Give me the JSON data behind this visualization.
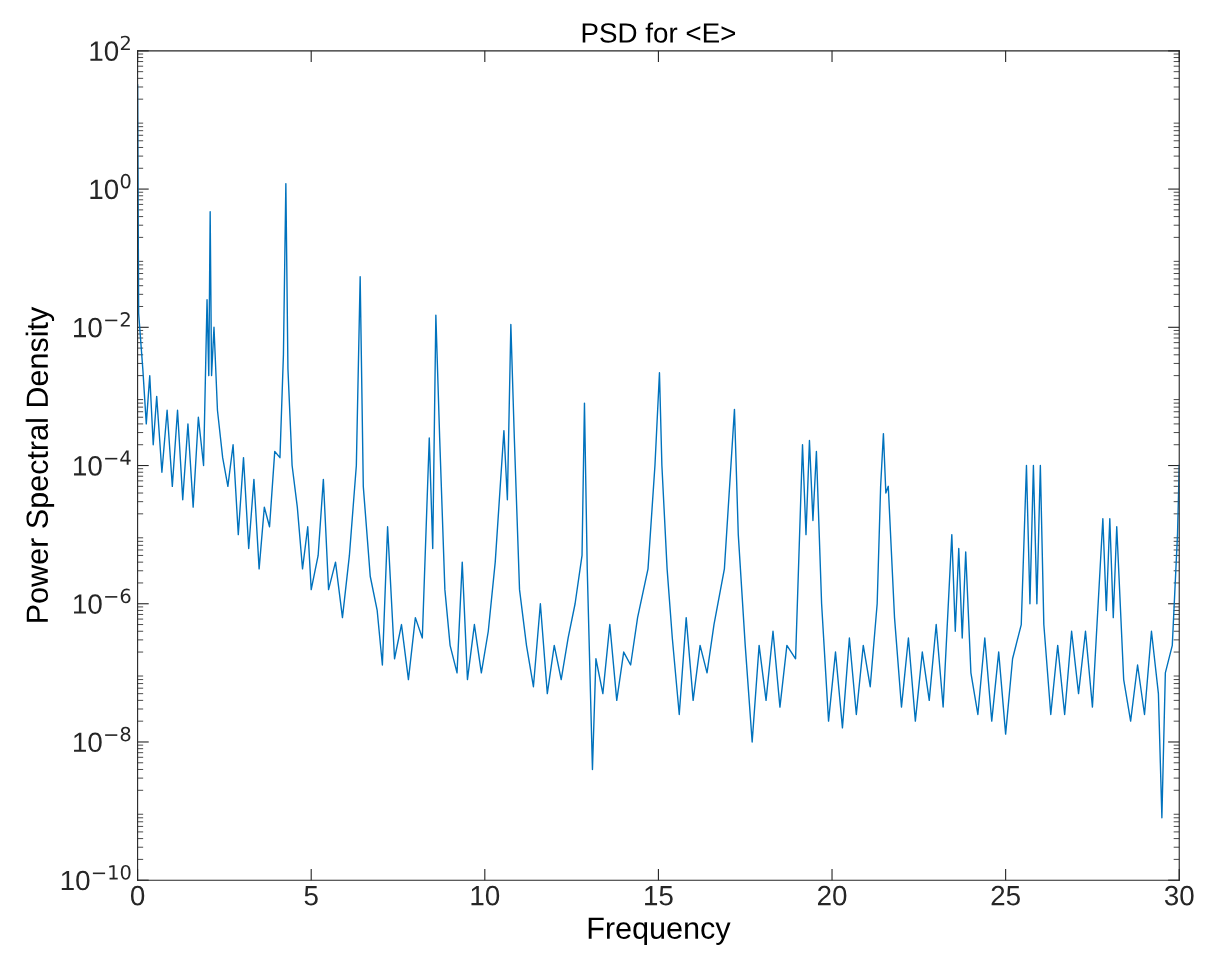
{
  "chart_data": {
    "type": "line",
    "title": "PSD for <E>",
    "xlabel": "Frequency",
    "ylabel": "Power Spectral Density",
    "log": "y",
    "grid": false,
    "marker": "none",
    "line_style": "solid",
    "xlim": [
      0,
      30
    ],
    "xticks": [
      0,
      5,
      10,
      15,
      20,
      25,
      30
    ],
    "ylim": [
      1e-10,
      100
    ],
    "yticks": [
      {
        "value": 1e-10,
        "label": "10$^{−10}$"
      },
      {
        "value": 1e-08,
        "label": "10$^{−8}$"
      },
      {
        "value": 1e-06,
        "label": "10$^{−6}$"
      },
      {
        "value": 0.0001,
        "label": "10$^{−4}$"
      },
      {
        "value": 0.01,
        "label": "10$^{−2}$"
      },
      {
        "value": 1,
        "label": "10$^{0}$"
      },
      {
        "value": 100,
        "label": "10$^{2}$"
      }
    ],
    "series": [
      {
        "color": "#0072bd",
        "x": [
          0,
          0.03,
          0.15,
          0.25,
          0.35,
          0.45,
          0.55,
          0.7,
          0.85,
          1.0,
          1.15,
          1.3,
          1.45,
          1.6,
          1.75,
          1.9,
          2.0,
          2.05,
          2.09,
          2.13,
          2.2,
          2.3,
          2.45,
          2.6,
          2.75,
          2.9,
          3.05,
          3.2,
          3.35,
          3.5,
          3.65,
          3.8,
          3.95,
          4.1,
          4.2,
          4.27,
          4.33,
          4.45,
          4.6,
          4.75,
          4.9,
          5.0,
          5.2,
          5.35,
          5.5,
          5.7,
          5.9,
          6.1,
          6.3,
          6.41,
          6.5,
          6.7,
          6.9,
          7.05,
          7.2,
          7.4,
          7.6,
          7.8,
          8.0,
          8.2,
          8.4,
          8.5,
          8.59,
          8.7,
          8.85,
          9.0,
          9.2,
          9.35,
          9.5,
          9.7,
          9.9,
          10.1,
          10.3,
          10.55,
          10.65,
          10.75,
          10.85,
          11.0,
          11.2,
          11.4,
          11.6,
          11.8,
          12.0,
          12.2,
          12.4,
          12.6,
          12.8,
          12.87,
          12.95,
          13.1,
          13.2,
          13.4,
          13.6,
          13.8,
          14.0,
          14.2,
          14.4,
          14.7,
          14.9,
          15.03,
          15.1,
          15.25,
          15.4,
          15.6,
          15.8,
          16.0,
          16.2,
          16.4,
          16.6,
          16.9,
          17.05,
          17.19,
          17.3,
          17.5,
          17.7,
          17.9,
          18.1,
          18.3,
          18.5,
          18.7,
          18.95,
          19.15,
          19.25,
          19.35,
          19.45,
          19.55,
          19.7,
          19.9,
          20.1,
          20.3,
          20.5,
          20.7,
          20.9,
          21.1,
          21.3,
          21.4,
          21.48,
          21.55,
          21.62,
          21.8,
          22.0,
          22.2,
          22.4,
          22.6,
          22.8,
          23.0,
          23.2,
          23.45,
          23.55,
          23.65,
          23.75,
          23.85,
          24.0,
          24.2,
          24.4,
          24.6,
          24.8,
          25.0,
          25.2,
          25.45,
          25.6,
          25.7,
          25.8,
          25.9,
          26.0,
          26.1,
          26.3,
          26.5,
          26.7,
          26.9,
          27.1,
          27.3,
          27.5,
          27.8,
          27.9,
          28.0,
          28.1,
          28.2,
          28.4,
          28.6,
          28.8,
          29.0,
          29.2,
          29.4,
          29.5,
          29.6,
          29.8,
          29.95,
          30.0
        ],
        "values": [
          32,
          0.016,
          0.0025,
          0.0004,
          0.002,
          0.0002,
          0.001,
          8e-05,
          0.00063,
          5e-05,
          0.00063,
          3.2e-05,
          0.0004,
          2.5e-05,
          0.0005,
          0.0001,
          0.025,
          0.002,
          0.47,
          0.002,
          0.01,
          0.00063,
          0.00013,
          5e-05,
          0.0002,
          1e-05,
          0.00013,
          6.3e-06,
          6.3e-05,
          3.2e-06,
          2.5e-05,
          1.3e-05,
          0.00016,
          0.00013,
          0.004,
          1.2,
          0.0025,
          0.0001,
          2.5e-05,
          3.2e-06,
          1.3e-05,
          1.6e-06,
          5e-06,
          6.3e-05,
          1.6e-06,
          4e-06,
          6.3e-07,
          5e-06,
          0.0001,
          0.054,
          5e-05,
          2.5e-06,
          8e-07,
          1.3e-07,
          1.3e-05,
          1.6e-07,
          5e-07,
          8e-08,
          6.3e-07,
          3.2e-07,
          0.00025,
          6.3e-06,
          0.015,
          0.00025,
          1.6e-06,
          2.5e-07,
          1e-07,
          4e-06,
          8e-08,
          5e-07,
          1e-07,
          4e-07,
          4e-06,
          0.00032,
          3.2e-05,
          0.011,
          0.00025,
          1.6e-06,
          2.5e-07,
          6.3e-08,
          1e-06,
          5e-08,
          2.5e-07,
          8e-08,
          3.2e-07,
          1e-06,
          5e-06,
          0.0008,
          3.2e-06,
          4e-09,
          1.6e-07,
          5e-08,
          5e-07,
          4e-08,
          2e-07,
          1.3e-07,
          6.3e-07,
          3.2e-06,
          0.0001,
          0.0022,
          0.0001,
          3.2e-06,
          3.2e-07,
          2.5e-08,
          6.3e-07,
          4e-08,
          2.5e-07,
          1e-07,
          5e-07,
          3.2e-06,
          5e-05,
          0.00065,
          1e-05,
          2.5e-07,
          1e-08,
          2.5e-07,
          4e-08,
          4e-07,
          3.2e-08,
          2.5e-07,
          1.6e-07,
          0.0002,
          1e-05,
          0.00023,
          1.6e-05,
          0.00016,
          1e-06,
          2e-08,
          2e-07,
          1.6e-08,
          3.2e-07,
          2.5e-08,
          2.5e-07,
          6.3e-08,
          1e-06,
          5e-05,
          0.00029,
          4e-05,
          5e-05,
          6.3e-07,
          3.2e-08,
          3.2e-07,
          2e-08,
          2e-07,
          4e-08,
          5e-07,
          3.2e-08,
          1e-05,
          4e-07,
          6.3e-06,
          3.2e-07,
          5.6e-06,
          1e-07,
          2.5e-08,
          3.2e-07,
          2e-08,
          2e-07,
          1.3e-08,
          1.6e-07,
          5e-07,
          0.0001,
          1e-06,
          0.0001,
          1e-06,
          0.0001,
          5e-07,
          2.5e-08,
          2.5e-07,
          2.5e-08,
          4e-07,
          5e-08,
          4e-07,
          3.2e-08,
          1.7e-05,
          8e-07,
          1.7e-05,
          6.3e-07,
          1.3e-05,
          8e-08,
          2e-08,
          1.3e-07,
          2.5e-08,
          4e-07,
          5e-08,
          8e-10,
          1e-07,
          2.5e-07,
          1e-05,
          0.0001
        ]
      }
    ]
  }
}
